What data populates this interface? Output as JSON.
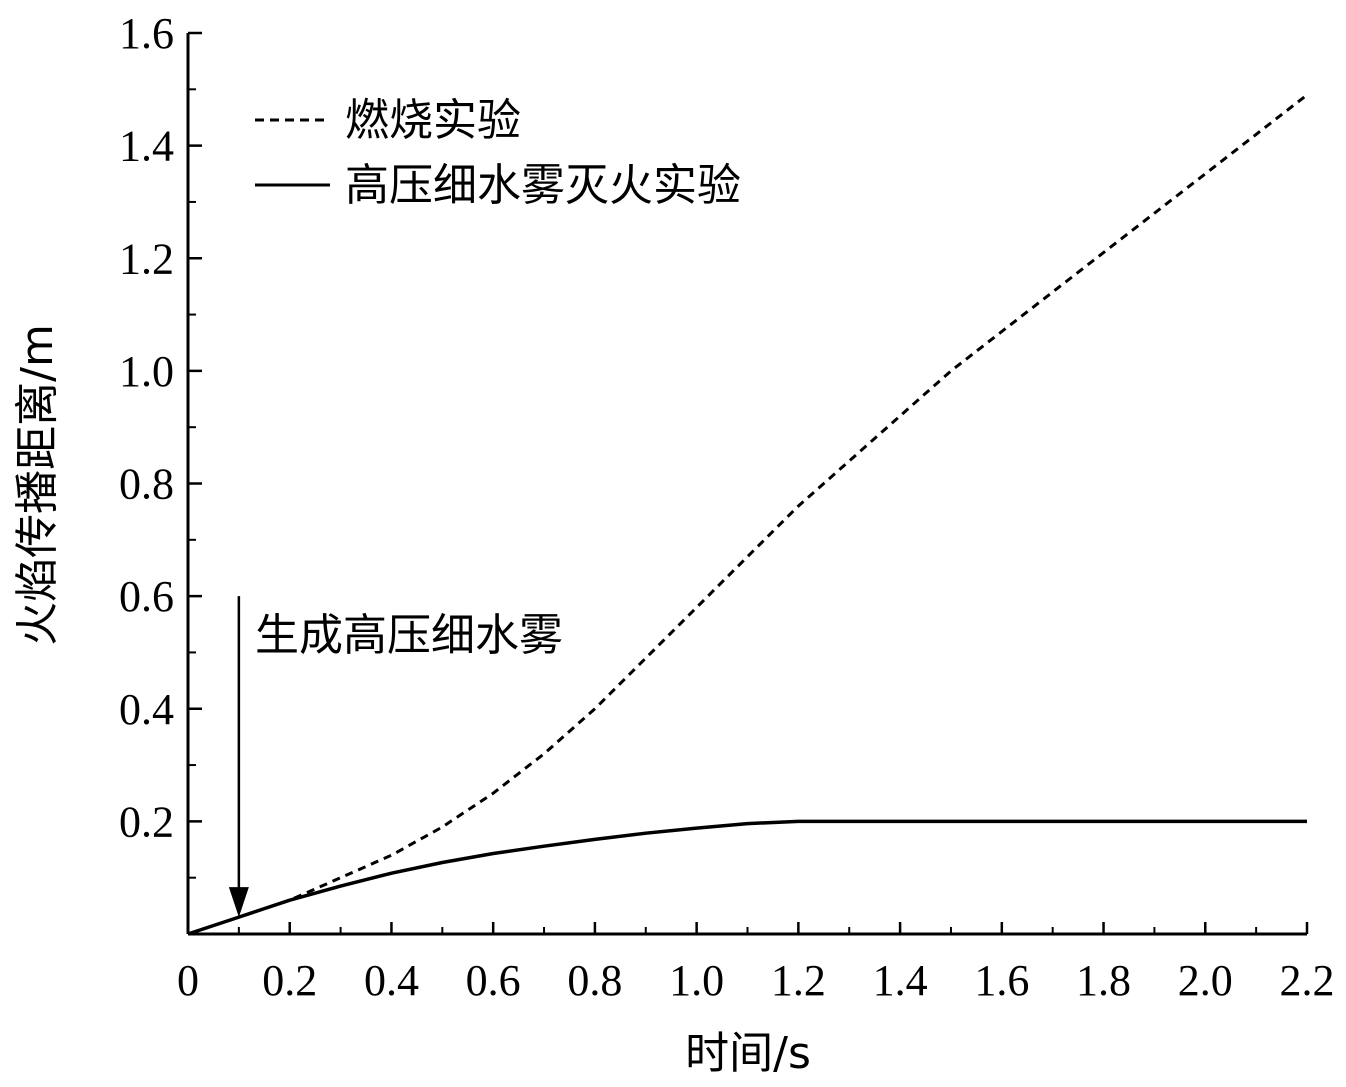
{
  "chart_data": {
    "type": "line",
    "xlabel": "时间/s",
    "ylabel": "火焰传播距离/m",
    "xlim": [
      0,
      2.2
    ],
    "ylim": [
      0,
      1.6
    ],
    "xticks": [
      0,
      0.2,
      0.4,
      0.6,
      0.8,
      1.0,
      1.2,
      1.4,
      1.6,
      1.8,
      2.0,
      2.2
    ],
    "xtick_labels": [
      "0",
      "0.2",
      "0.4",
      "0.6",
      "0.8",
      "1.0",
      "1.2",
      "1.4",
      "1.6",
      "1.8",
      "2.0",
      "2.2"
    ],
    "yticks": [
      0.2,
      0.4,
      0.6,
      0.8,
      1.0,
      1.2,
      1.4,
      1.6
    ],
    "ytick_labels": [
      "0.2",
      "0.4",
      "0.6",
      "0.8",
      "1.0",
      "1.2",
      "1.4",
      "1.6"
    ],
    "grid": false,
    "legend_position": "top-left",
    "series": [
      {
        "name": "燃烧实验",
        "style": "dashed",
        "color": "#000000",
        "x": [
          0,
          0.1,
          0.2,
          0.3,
          0.4,
          0.5,
          0.6,
          0.7,
          0.8,
          0.9,
          1.0,
          1.1,
          1.2,
          1.3,
          1.4,
          1.5,
          1.6,
          1.7,
          1.8,
          1.9,
          2.0,
          2.1,
          2.2
        ],
        "y": [
          0,
          0.03,
          0.06,
          0.1,
          0.14,
          0.19,
          0.25,
          0.32,
          0.4,
          0.49,
          0.58,
          0.67,
          0.76,
          0.84,
          0.92,
          1.0,
          1.07,
          1.14,
          1.21,
          1.28,
          1.35,
          1.42,
          1.49
        ]
      },
      {
        "name": "高压细水雾灭火实验",
        "style": "solid",
        "color": "#000000",
        "x": [
          0,
          0.1,
          0.2,
          0.3,
          0.4,
          0.5,
          0.6,
          0.7,
          0.8,
          0.9,
          1.0,
          1.1,
          1.2,
          1.4,
          1.6,
          1.8,
          2.0,
          2.2
        ],
        "y": [
          0,
          0.03,
          0.06,
          0.085,
          0.108,
          0.127,
          0.143,
          0.156,
          0.168,
          0.179,
          0.188,
          0.196,
          0.2,
          0.2,
          0.2,
          0.2,
          0.2,
          0.2
        ]
      }
    ],
    "annotation": {
      "text": "生成高压细水雾",
      "arrow_x": 0.1,
      "arrow_from_y": 0.6,
      "arrow_to_y": 0.03
    }
  }
}
